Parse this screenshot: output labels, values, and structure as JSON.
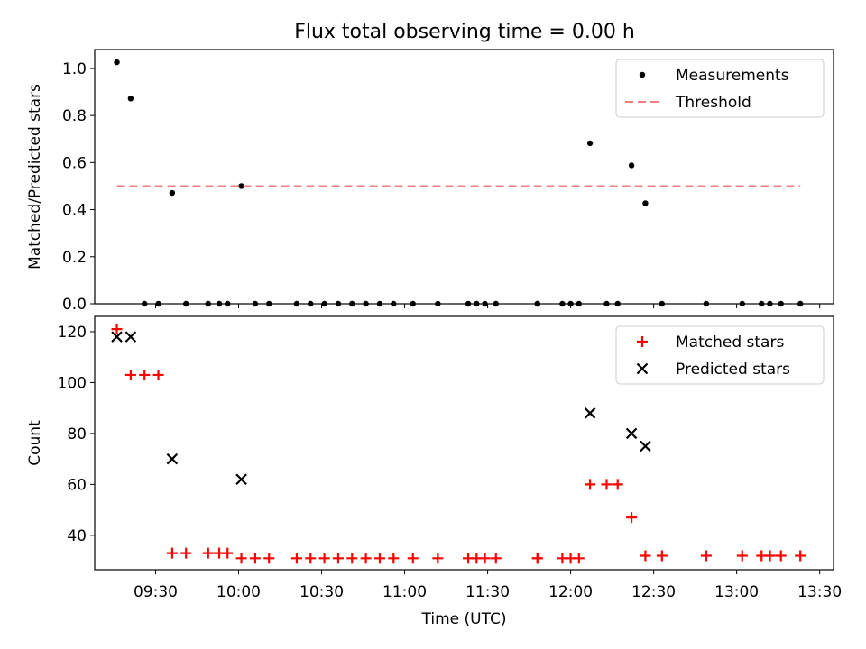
{
  "figure": {
    "title": "Flux total observing time = 0.00 h"
  },
  "chart_data": [
    {
      "type": "scatter",
      "ylabel": "Matched/Predicted stars",
      "xlabel": "",
      "xlim": [
        "09:08",
        "13:35"
      ],
      "ylim": [
        0,
        1.08
      ],
      "yticks": [
        0.0,
        0.2,
        0.4,
        0.6,
        0.8,
        1.0
      ],
      "ytick_labels": [
        "0.0",
        "0.2",
        "0.4",
        "0.6",
        "0.8",
        "1.0"
      ],
      "legend_position": "top-right",
      "grid": false,
      "series": [
        {
          "name": "Measurements",
          "kind": "scatter",
          "marker": "dot",
          "color": "#000000",
          "x": [
            "09:16",
            "09:21",
            "09:26",
            "09:31",
            "09:36",
            "09:41",
            "09:49",
            "09:53",
            "09:56",
            "10:01",
            "10:06",
            "10:11",
            "10:21",
            "10:26",
            "10:31",
            "10:36",
            "10:41",
            "10:46",
            "10:51",
            "10:56",
            "11:03",
            "11:12",
            "11:23",
            "11:26",
            "11:29",
            "11:33",
            "11:48",
            "11:48",
            "11:57",
            "12:00",
            "12:03",
            "12:07",
            "12:13",
            "12:17",
            "12:22",
            "12:27",
            "12:33",
            "12:49",
            "13:02",
            "13:09",
            "13:12",
            "13:16",
            "13:23"
          ],
          "y": [
            1.026,
            0.872,
            0.0,
            0.0,
            0.471,
            0.0,
            0.0,
            0.0,
            0.0,
            0.5,
            0.0,
            0.0,
            0.0,
            0.0,
            0.0,
            0.0,
            0.0,
            0.0,
            0.0,
            0.0,
            0.0,
            0.0,
            0.0,
            0.0,
            0.0,
            0.0,
            0.0,
            0.0,
            0.0,
            0.0,
            0.0,
            0.682,
            0.0,
            0.0,
            0.588,
            0.427,
            0.0,
            0.0,
            0.0,
            0.0,
            0.0,
            0.0,
            0.0
          ]
        },
        {
          "name": "Threshold",
          "kind": "line",
          "dash": "dashed",
          "color": "#f08080",
          "x": [
            "09:16",
            "13:23"
          ],
          "y": [
            0.5,
            0.5
          ]
        }
      ]
    },
    {
      "type": "scatter",
      "xlabel": "Time (UTC)",
      "ylabel": "Count",
      "xlim": [
        "09:08",
        "13:35"
      ],
      "ylim": [
        26.5,
        126
      ],
      "xticks": [
        "09:30",
        "10:00",
        "10:30",
        "11:00",
        "11:30",
        "12:00",
        "12:30",
        "13:00",
        "13:30"
      ],
      "yticks": [
        40,
        60,
        80,
        100,
        120
      ],
      "ytick_labels": [
        "40",
        "60",
        "80",
        "100",
        "120"
      ],
      "legend_position": "top-right",
      "grid": false,
      "series": [
        {
          "name": "Matched stars",
          "kind": "scatter",
          "marker": "plus",
          "color": "#ff0000",
          "x": [
            "09:16",
            "09:21",
            "09:26",
            "09:31",
            "09:36",
            "09:41",
            "09:49",
            "09:53",
            "09:56",
            "10:01",
            "10:06",
            "10:11",
            "10:21",
            "10:26",
            "10:31",
            "10:36",
            "10:41",
            "10:46",
            "10:51",
            "10:56",
            "11:03",
            "11:12",
            "11:23",
            "11:26",
            "11:29",
            "11:33",
            "11:48",
            "11:48",
            "11:57",
            "12:00",
            "12:03",
            "12:07",
            "12:13",
            "12:17",
            "12:22",
            "12:27",
            "12:33",
            "12:49",
            "13:02",
            "13:09",
            "13:12",
            "13:16",
            "13:23"
          ],
          "y": [
            121,
            103,
            103,
            103,
            33,
            33,
            33,
            33,
            33,
            31,
            31,
            31,
            31,
            31,
            31,
            31,
            31,
            31,
            31,
            31,
            31,
            31,
            31,
            31,
            31,
            31,
            31,
            31,
            31,
            31,
            31,
            60,
            60,
            60,
            47,
            32,
            32,
            32,
            32,
            32,
            32,
            32,
            32
          ]
        },
        {
          "name": "Predicted stars",
          "kind": "scatter",
          "marker": "x",
          "color": "#000000",
          "x": [
            "09:16",
            "09:21",
            "09:36",
            "10:01",
            "12:07",
            "12:22",
            "12:27"
          ],
          "y": [
            118,
            118,
            70,
            62,
            88,
            80,
            75
          ]
        }
      ]
    }
  ]
}
